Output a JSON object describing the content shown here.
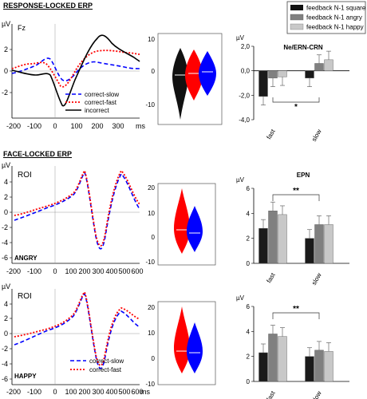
{
  "sections": {
    "response": "RESPONSE-LOCKED ERP",
    "face": "FACE-LOCKED ERP"
  },
  "legend": {
    "items": [
      {
        "label": "feedback N-1 square",
        "color": "#111111"
      },
      {
        "label": "feedback N-1 angry",
        "color": "#808080"
      },
      {
        "label": "feedback N-1 happy",
        "color": "#c8c8c8"
      }
    ]
  },
  "erp_panels": [
    {
      "id": "resp",
      "corner": "Fz",
      "tag": "",
      "unit": "µV",
      "xunit": "ms",
      "xticks": [
        "-200",
        "-100",
        "0",
        "100",
        "200",
        "300"
      ],
      "yticks": [
        "2",
        "0",
        "-2"
      ],
      "legend": [
        "correct-slow",
        "correct-fast",
        "incorrect"
      ]
    },
    {
      "id": "angry",
      "corner": "ROI",
      "tag": "ANGRY",
      "unit": "µV",
      "xunit": "",
      "xticks": [
        "-200",
        "-100",
        "0",
        "100",
        "200",
        "300",
        "400",
        "500",
        "600"
      ],
      "yticks": [
        "4",
        "2",
        "0",
        "-2",
        "-4",
        "-6"
      ],
      "legend": []
    },
    {
      "id": "happy",
      "corner": "ROI",
      "tag": "HAPPY",
      "unit": "µV",
      "xunit": "ms",
      "xticks": [
        "-200",
        "-100",
        "0",
        "100",
        "200",
        "300",
        "400",
        "500",
        "600"
      ],
      "yticks": [
        "4",
        "2",
        "0",
        "-2",
        "-4",
        "-6"
      ],
      "legend": [
        "correct-slow",
        "correct-fast"
      ]
    }
  ],
  "violin_panels": [
    {
      "id": "v1",
      "yticks": [
        "10",
        "0",
        "-10"
      ],
      "colors": [
        "#111111",
        "#ff0000",
        "#0000ff"
      ]
    },
    {
      "id": "v2",
      "yticks": [
        "20",
        "10",
        "0",
        "-10"
      ],
      "colors": [
        "#ff0000",
        "#0000ff"
      ]
    },
    {
      "id": "v3",
      "yticks": [
        "20",
        "10",
        "0",
        "-10"
      ],
      "colors": [
        "#ff0000",
        "#0000ff"
      ]
    }
  ],
  "chart_data": [
    {
      "type": "bar",
      "title": "Ne/ERN-CRN",
      "categories": [
        "fast",
        "slow"
      ],
      "series": [
        {
          "name": "feedback N-1 square",
          "values": [
            -2.1,
            -0.6
          ]
        },
        {
          "name": "feedback N-1 angry",
          "values": [
            -0.6,
            0.6
          ]
        },
        {
          "name": "feedback N-1 happy",
          "values": [
            -0.5,
            0.9
          ]
        }
      ],
      "ylim": [
        -4.0,
        2.0
      ],
      "yticks": [
        "2,0",
        "0,0",
        "-2,0",
        "-4,0"
      ],
      "ylabel": "µV",
      "significance": "*"
    },
    {
      "type": "bar",
      "title": "EPN",
      "categories": [
        "fast",
        "slow"
      ],
      "series": [
        {
          "name": "feedback N-1 square",
          "values": [
            2.8,
            2.0
          ]
        },
        {
          "name": "feedback N-1 angry",
          "values": [
            4.2,
            3.1
          ]
        },
        {
          "name": "feedback N-1 happy",
          "values": [
            3.9,
            3.1
          ]
        }
      ],
      "ylim": [
        0,
        6
      ],
      "yticks": [
        "6",
        "4",
        "2",
        "0"
      ],
      "ylabel": "µV",
      "significance": "**"
    },
    {
      "type": "bar",
      "title": "",
      "categories": [
        "fast",
        "slow"
      ],
      "series": [
        {
          "name": "feedback N-1 square",
          "values": [
            2.3,
            2.0
          ]
        },
        {
          "name": "feedback N-1 angry",
          "values": [
            3.8,
            2.5
          ]
        },
        {
          "name": "feedback N-1 happy",
          "values": [
            3.6,
            2.4
          ]
        }
      ],
      "ylim": [
        0,
        6
      ],
      "yticks": [
        "6",
        "4",
        "2",
        "0"
      ],
      "ylabel": "µV",
      "significance": "**"
    }
  ]
}
